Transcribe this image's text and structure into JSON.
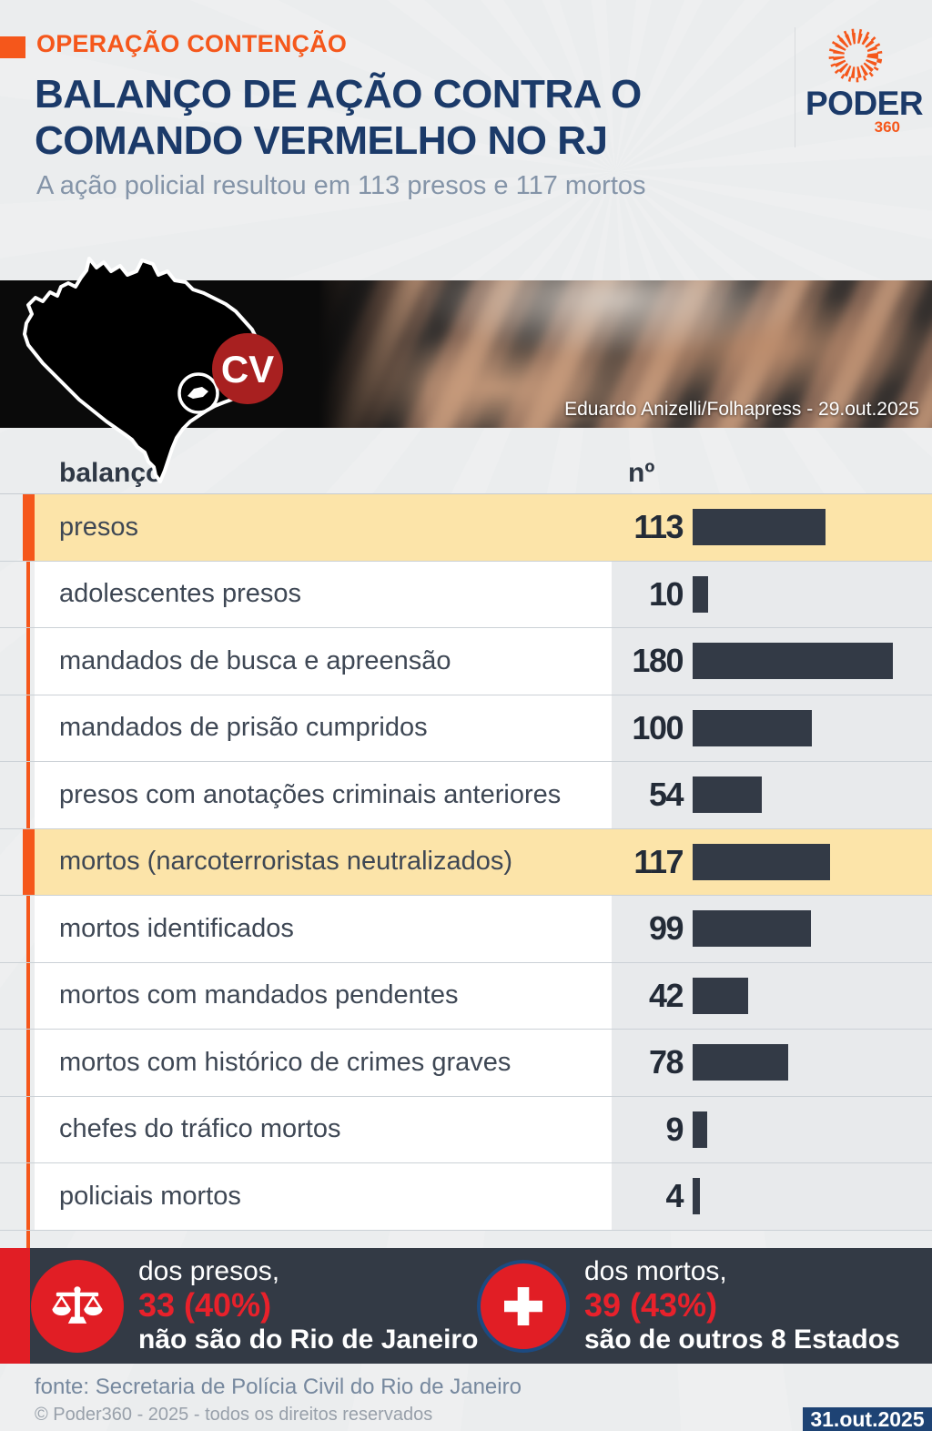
{
  "header": {
    "kicker": "OPERAÇÃO CONTENÇÃO",
    "title_line1": "BALANÇO DE AÇÃO CONTRA O",
    "title_line2": "COMANDO VERMELHO NO RJ",
    "subtitle": "A ação policial resultou em 113 presos e 117 mortos",
    "logo_name": "PODER",
    "logo_sub": "360"
  },
  "banner": {
    "cv_badge": "CV",
    "photo_credit": "Eduardo Anizelli/Folhapress - 29.out.2025"
  },
  "chart_data": {
    "type": "bar",
    "title": "balanço",
    "column_headers": {
      "label": "balanço",
      "value": "nº"
    },
    "xlim": [
      0,
      180
    ],
    "orientation": "horizontal",
    "rows": [
      {
        "label": "presos",
        "value": 113,
        "highlight": true
      },
      {
        "label": "adolescentes presos",
        "value": 10,
        "highlight": false
      },
      {
        "label": "mandados de busca e apreensão",
        "value": 180,
        "highlight": false
      },
      {
        "label": "mandados de prisão cumpridos",
        "value": 100,
        "highlight": false
      },
      {
        "label": "presos com anotações criminais anteriores",
        "value": 54,
        "highlight": false
      },
      {
        "label": "mortos (narcoterroristas neutralizados)",
        "value": 117,
        "highlight": true
      },
      {
        "label": "mortos identificados",
        "value": 99,
        "highlight": false
      },
      {
        "label": "mortos com mandados pendentes",
        "value": 42,
        "highlight": false
      },
      {
        "label": "mortos com histórico de crimes graves",
        "value": 78,
        "highlight": false
      },
      {
        "label": "chefes do tráfico mortos",
        "value": 9,
        "highlight": false
      },
      {
        "label": "policiais mortos",
        "value": 4,
        "highlight": false
      }
    ]
  },
  "stats": [
    {
      "icon": "scales-icon",
      "line1": "dos presos,",
      "line2": "33 (40%)",
      "line3": "não são do Rio de Janeiro"
    },
    {
      "icon": "medical-cross-icon",
      "line1": "dos mortos,",
      "line2": "39 (43%)",
      "line3": "são de outros 8 Estados"
    }
  ],
  "footer": {
    "source": "fonte: Secretaria de Polícia Civil do Rio de Janeiro",
    "copyright": "© Poder360 - 2025 - todos os direitos reservados",
    "date_badge": "31.out.2025"
  },
  "colors": {
    "accent_orange": "#F5571B",
    "navy_title": "#1B3A69",
    "highlight_row": "#FCE4A9",
    "bar_dark": "#333A46",
    "band_dark": "#333A45",
    "stat_red": "#E11E25",
    "cv_red": "#A82020",
    "ring_navy": "#1C4A80",
    "badge_navy": "#1E4374"
  }
}
